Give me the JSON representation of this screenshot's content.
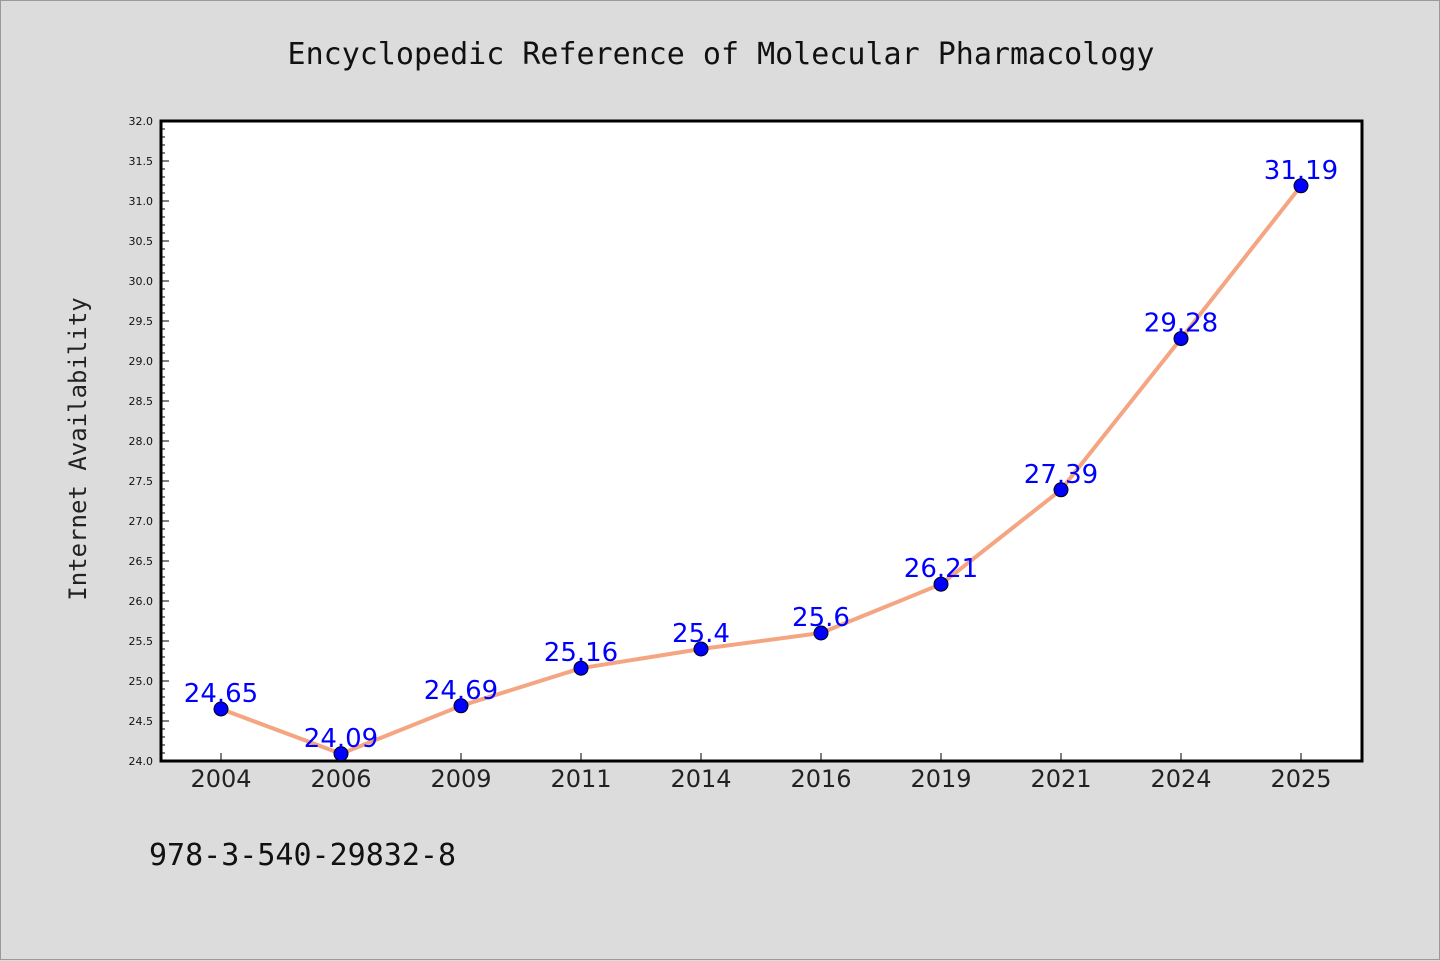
{
  "chart_data": {
    "type": "line",
    "title": "Encyclopedic Reference of Molecular Pharmacology",
    "xlabel": "",
    "ylabel": "Internet Availability",
    "categories": [
      "2004",
      "2006",
      "2009",
      "2011",
      "2014",
      "2016",
      "2019",
      "2021",
      "2024",
      "2025"
    ],
    "series": [
      {
        "values": [
          24.65,
          24.09,
          24.69,
          25.16,
          25.4,
          25.6,
          26.21,
          27.39,
          29.28,
          31.19
        ],
        "line_color": "#f4a582",
        "marker_color": "#0000ff"
      }
    ],
    "ylim": [
      24.0,
      32.0
    ],
    "yticks": [
      "24.0",
      "24.5",
      "25.0",
      "25.5",
      "26.0",
      "26.5",
      "27.0",
      "27.5",
      "28.0",
      "28.5",
      "29.0",
      "29.5",
      "30.0",
      "30.5",
      "31.0",
      "31.5",
      "32.0"
    ],
    "data_labels": [
      "24.65",
      "24.09",
      "24.69",
      "25.16",
      "25.4",
      "25.6",
      "26.21",
      "27.39",
      "29.28",
      "31.19"
    ],
    "label_color": "#0000ff",
    "grid": false,
    "legend": "none"
  },
  "footer": {
    "isbn": "978-3-540-29832-8"
  },
  "colors": {
    "background": "#dcdcdc",
    "plot_area": "#ffffff"
  }
}
